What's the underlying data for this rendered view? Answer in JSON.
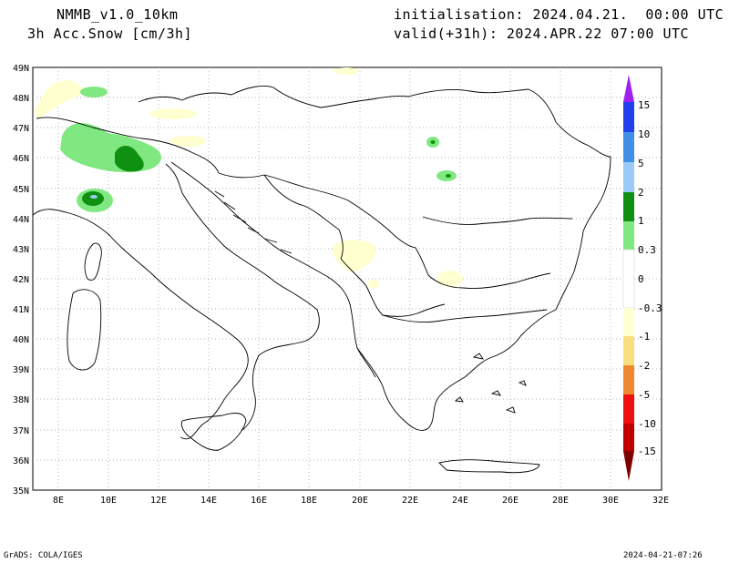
{
  "header": {
    "model": "NMMB_v1.0_10km",
    "variable": "3h Acc.Snow [cm/3h]",
    "init": "initialisation: 2024.04.21.  00:00 UTC",
    "valid": "valid(+31h): 2024.APR.22 07:00 UTC"
  },
  "map": {
    "lat_labels": [
      "49N",
      "48N",
      "47N",
      "46N",
      "45N",
      "44N",
      "43N",
      "42N",
      "41N",
      "40N",
      "39N",
      "38N",
      "37N",
      "36N",
      "35N"
    ],
    "lon_labels": [
      "8E",
      "10E",
      "12E",
      "14E",
      "16E",
      "18E",
      "20E",
      "22E",
      "24E",
      "26E",
      "28E",
      "30E",
      "32E"
    ],
    "lat_range": [
      35,
      49
    ],
    "lon_range": [
      7,
      32
    ]
  },
  "colorbar": {
    "labels": [
      "15",
      "10",
      "5",
      "2",
      "1",
      "0.3",
      "0",
      "-0.3",
      "-1",
      "-2",
      "-5",
      "-10",
      "-15"
    ],
    "colors": [
      "#a020f0",
      "#2040f0",
      "#4090e8",
      "#9ccaf8",
      "#109010",
      "#80e880",
      "#ffffff",
      "#ffffd0",
      "#f8f0a0",
      "#f0c040",
      "#f08830",
      "#f01010",
      "#c00000",
      "#800000"
    ]
  },
  "footer": {
    "left": "GrADS: COLA/IGES",
    "right": "2024-04-21-07:26"
  }
}
